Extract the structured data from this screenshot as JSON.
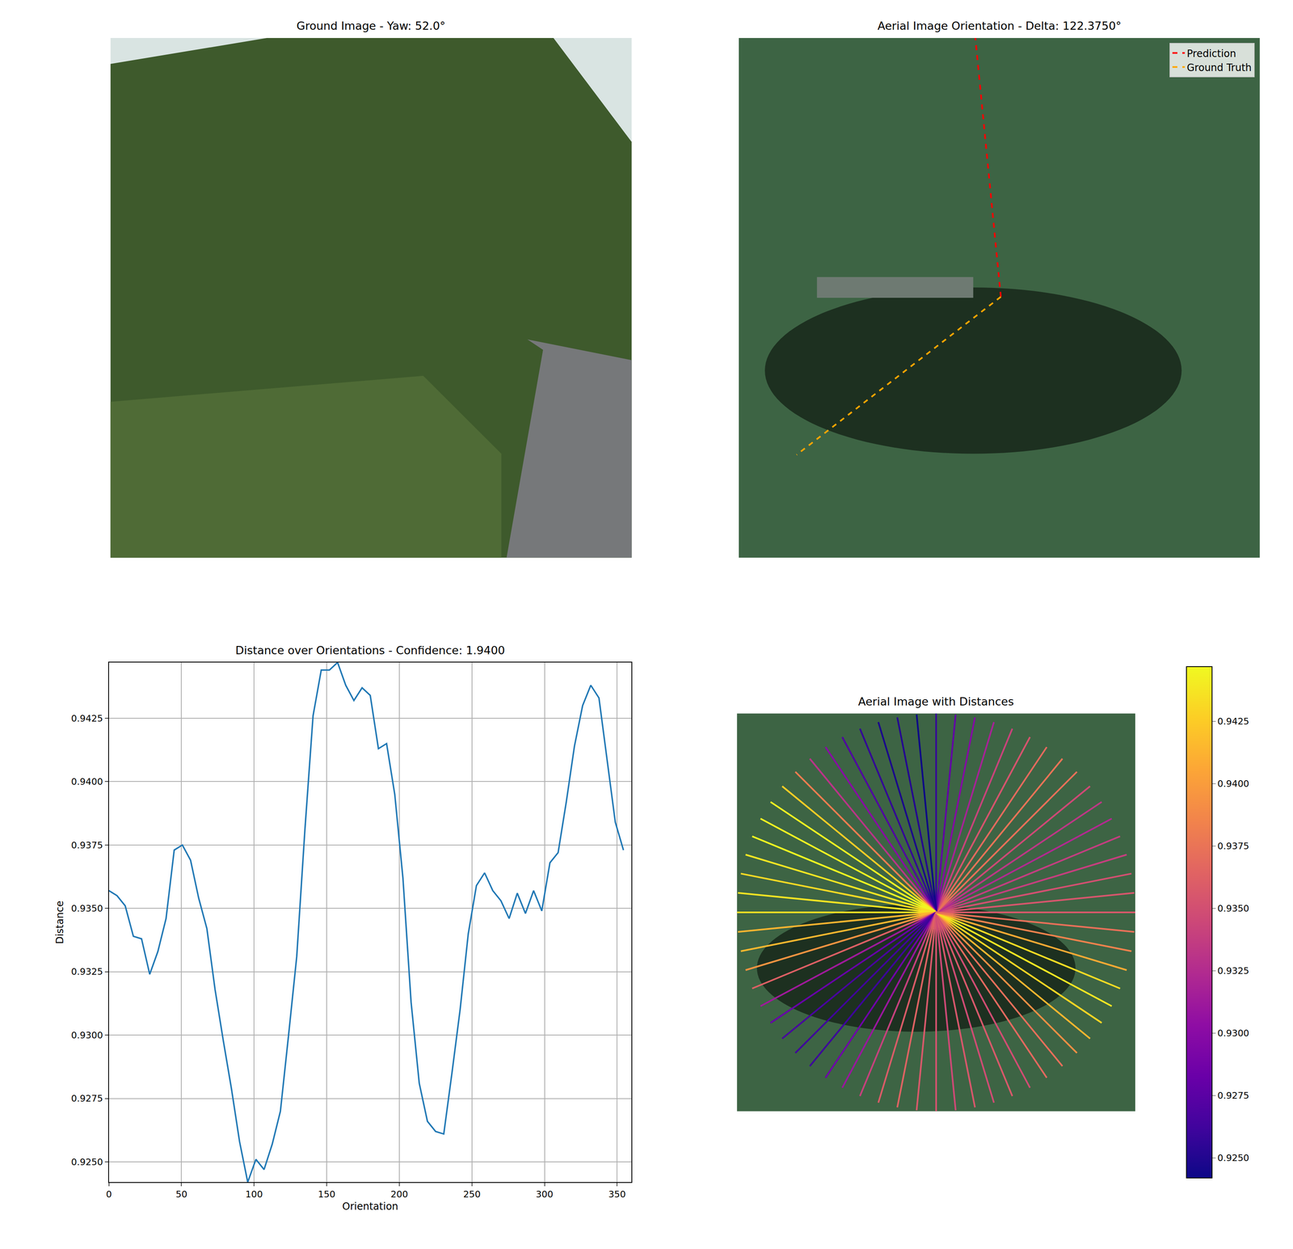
{
  "chart_data": [
    {
      "type": "image",
      "title": "Ground Image - Yaw: 52.0°",
      "tick_labels": false
    },
    {
      "type": "line",
      "title": "Aerial Image Orientation - Delta: 122.3750°",
      "tick_labels": false,
      "xlim": [
        0,
        1
      ],
      "ylim": [
        0,
        1
      ],
      "legend": "upper right",
      "series": [
        {
          "name": "Prediction",
          "color": "#ff0000",
          "line_style": "dashed",
          "x": [
            0.503,
            0.454
          ],
          "values": [
            0.502,
            1.0
          ]
        },
        {
          "name": "Ground Truth",
          "color": "#ffa500",
          "line_style": "dashed",
          "x": [
            0.503,
            0.111
          ],
          "values": [
            0.502,
            0.198
          ]
        }
      ]
    },
    {
      "type": "line",
      "title": "Distance over Orientations - Confidence: 1.9400",
      "x_label": "Orientation",
      "y_label": "Distance",
      "color": "#1f77b4",
      "grid": true,
      "xlim": [
        0,
        360
      ],
      "ylim": [
        0.9242,
        0.9447
      ],
      "xticks": [
        0,
        50,
        100,
        150,
        200,
        250,
        300,
        350
      ],
      "yticks": [
        {
          "value": 0.925,
          "label": "0.9250"
        },
        0.9275,
        {
          "value": 0.93,
          "label": "0.9300"
        },
        0.9325,
        {
          "value": 0.935,
          "label": "0.9350"
        },
        0.9375,
        {
          "value": 0.94,
          "label": "0.9400"
        },
        0.9425
      ],
      "x": [
        0,
        5.625,
        11.25,
        16.875,
        22.5,
        28.125,
        33.75,
        39.375,
        45,
        50.625,
        56.25,
        61.875,
        67.5,
        73.125,
        78.75,
        84.375,
        90,
        95.625,
        101.25,
        106.875,
        112.5,
        118.125,
        123.75,
        129.375,
        135,
        140.625,
        146.25,
        151.875,
        157.5,
        163.125,
        168.75,
        174.375,
        180,
        185.625,
        191.25,
        196.875,
        202.5,
        208.125,
        213.75,
        219.375,
        225,
        230.625,
        236.25,
        241.875,
        247.5,
        253.125,
        258.75,
        264.375,
        270,
        275.625,
        281.25,
        286.875,
        292.5,
        298.125,
        303.75,
        309.375,
        315,
        320.625,
        326.25,
        331.875,
        337.5,
        343.125,
        348.75,
        354.375
      ],
      "values": [
        0.9357,
        0.9355,
        0.9351,
        0.9339,
        0.9338,
        0.9324,
        0.9333,
        0.9346,
        0.9373,
        0.9375,
        0.9369,
        0.9354,
        0.9342,
        0.9318,
        0.9298,
        0.9279,
        0.9258,
        0.9242,
        0.9251,
        0.9247,
        0.9257,
        0.927,
        0.93,
        0.9331,
        0.9381,
        0.9426,
        0.9444,
        0.9444,
        0.9447,
        0.9438,
        0.9432,
        0.9437,
        0.9434,
        0.9413,
        0.9415,
        0.9395,
        0.9362,
        0.9313,
        0.9281,
        0.9266,
        0.9262,
        0.9261,
        0.9285,
        0.931,
        0.934,
        0.9359,
        0.9364,
        0.9357,
        0.9353,
        0.9346,
        0.9356,
        0.9348,
        0.9357,
        0.9349,
        0.9368,
        0.9372,
        0.9392,
        0.9414,
        0.943,
        0.9438,
        0.9433,
        0.9408,
        0.9384,
        0.9373
      ]
    },
    {
      "type": "rays",
      "title": "Aerial Image with Distances",
      "tick_labels": false,
      "xlim": [
        -1,
        1
      ],
      "ylim": [
        -1,
        1
      ],
      "x": [
        0,
        5.625,
        11.25,
        16.875,
        22.5,
        28.125,
        33.75,
        39.375,
        45,
        50.625,
        56.25,
        61.875,
        67.5,
        73.125,
        78.75,
        84.375,
        90,
        95.625,
        101.25,
        106.875,
        112.5,
        118.125,
        123.75,
        129.375,
        135,
        140.625,
        146.25,
        151.875,
        157.5,
        163.125,
        168.75,
        174.375,
        180,
        185.625,
        191.25,
        196.875,
        202.5,
        208.125,
        213.75,
        219.375,
        225,
        230.625,
        236.25,
        241.875,
        247.5,
        253.125,
        258.75,
        264.375,
        270,
        275.625,
        281.25,
        286.875,
        292.5,
        298.125,
        303.75,
        309.375,
        315,
        320.625,
        326.25,
        331.875,
        337.5,
        343.125,
        348.75,
        354.375
      ],
      "values": [
        0.9357,
        0.9355,
        0.9351,
        0.9339,
        0.9338,
        0.9324,
        0.9333,
        0.9346,
        0.9373,
        0.9375,
        0.9369,
        0.9354,
        0.9342,
        0.9318,
        0.9298,
        0.9279,
        0.9258,
        0.9242,
        0.9251,
        0.9247,
        0.9257,
        0.927,
        0.93,
        0.9331,
        0.9381,
        0.9426,
        0.9444,
        0.9444,
        0.9447,
        0.9438,
        0.9432,
        0.9437,
        0.9434,
        0.9413,
        0.9415,
        0.9395,
        0.9362,
        0.9313,
        0.9281,
        0.9266,
        0.9262,
        0.9261,
        0.9285,
        0.931,
        0.934,
        0.9359,
        0.9364,
        0.9357,
        0.9353,
        0.9346,
        0.9356,
        0.9348,
        0.9357,
        0.9349,
        0.9368,
        0.9372,
        0.9392,
        0.9414,
        0.943,
        0.9438,
        0.9433,
        0.9408,
        0.9384,
        0.9373
      ],
      "colorbar": {
        "range": [
          0.9242,
          0.9447
        ],
        "ticks": [
          {
            "value": 0.925,
            "label": "0.9250"
          },
          0.9275,
          {
            "value": 0.93,
            "label": "0.9300"
          },
          0.9325,
          {
            "value": 0.935,
            "label": "0.9350"
          },
          0.9375,
          {
            "value": 0.94,
            "label": "0.9400"
          },
          0.9425
        ]
      }
    }
  ]
}
